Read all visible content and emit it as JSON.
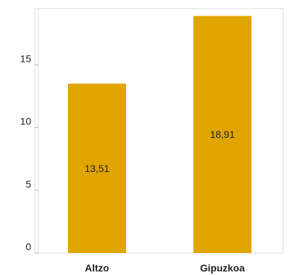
{
  "chart_data": {
    "type": "bar",
    "categories": [
      "Altzo",
      "Gipuzkoa"
    ],
    "values": [
      13.51,
      18.91
    ],
    "data_labels": [
      "13,51",
      "18,91"
    ],
    "title": "",
    "xlabel": "",
    "ylabel": "",
    "ylim": [
      0,
      19.5
    ],
    "yticks": [
      0,
      5,
      10,
      15
    ],
    "ytick_labels": [
      "0",
      "5",
      "10",
      "15"
    ],
    "grid": false,
    "legend": "none",
    "bar_color": "#e0a500",
    "axis_color": "#d9d9d9"
  }
}
